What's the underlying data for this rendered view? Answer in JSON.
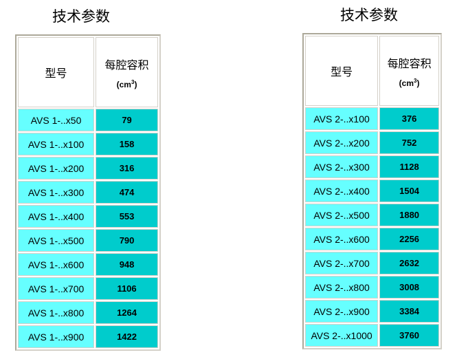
{
  "tables": [
    {
      "title": "技术参数",
      "header": {
        "model": "型号",
        "volume": "每腔容积",
        "unit_base": "(cm",
        "unit_exp": "3",
        "unit_close": ")"
      },
      "rows": [
        [
          "AVS 1-..x50",
          "79"
        ],
        [
          "AVS 1-..x100",
          "158"
        ],
        [
          "AVS 1-..x200",
          "316"
        ],
        [
          "AVS 1-..x300",
          "474"
        ],
        [
          "AVS 1-..x400",
          "553"
        ],
        [
          "AVS 1-..x500",
          "790"
        ],
        [
          "AVS 1-..x600",
          "948"
        ],
        [
          "AVS 1-..x700",
          "1106"
        ],
        [
          "AVS 1-..x800",
          "1264"
        ],
        [
          "AVS 1-..x900",
          "1422"
        ]
      ]
    },
    {
      "title": "技术参数",
      "header": {
        "model": "型号",
        "volume": "每腔容积",
        "unit_base": "(cm",
        "unit_exp": "3",
        "unit_close": ")"
      },
      "rows": [
        [
          "AVS 2-..x100",
          "376"
        ],
        [
          "AVS 2-..x200",
          "752"
        ],
        [
          "AVS 2-..x300",
          "1128"
        ],
        [
          "AVS 2-..x400",
          "1504"
        ],
        [
          "AVS 2-..x500",
          "1880"
        ],
        [
          "AVS 2-..x600",
          "2256"
        ],
        [
          "AVS 2-..x700",
          "2632"
        ],
        [
          "AVS 2-..x800",
          "3008"
        ],
        [
          "AVS 2-..x900",
          "3384"
        ],
        [
          "AVS 2-..x1000",
          "3760"
        ]
      ]
    }
  ],
  "colors": {
    "model_cell": "#66ffff",
    "value_cell": "#00cccc"
  }
}
